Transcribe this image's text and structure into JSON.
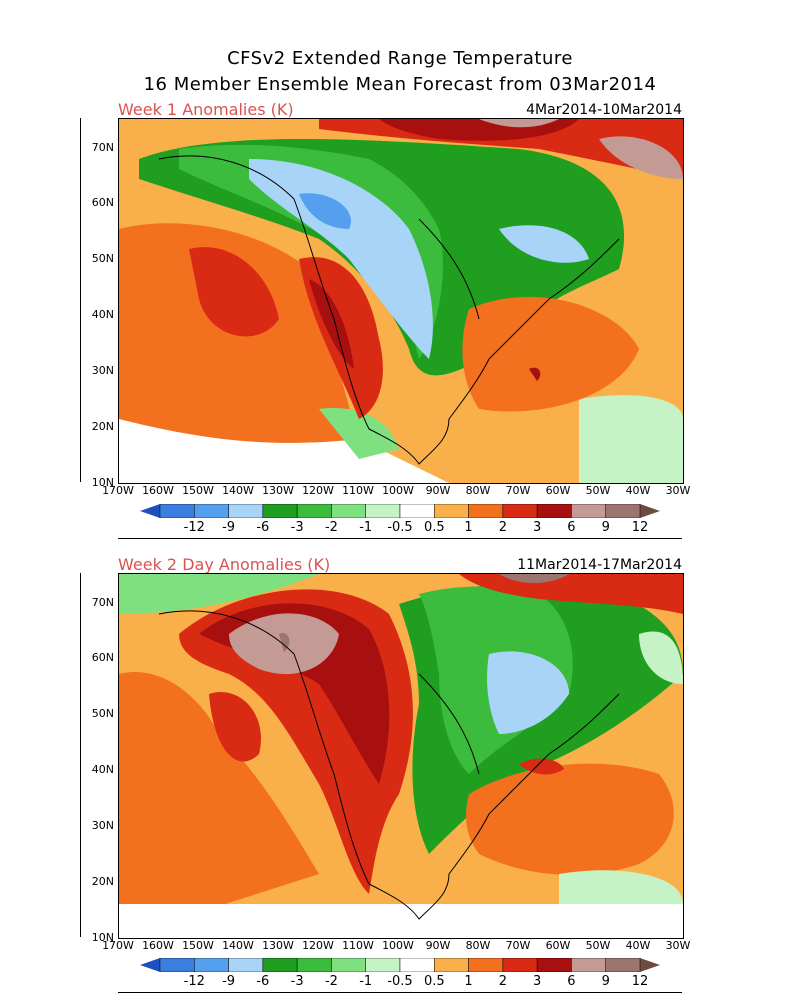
{
  "title_line1": "CFSv2 Extended Range Temperature",
  "title_line2": "16 Member Ensemble Mean Forecast from 03Mar2014",
  "panels": [
    {
      "label": "Week 1 Anomalies (K)",
      "dates": "4Mar2014-10Mar2014"
    },
    {
      "label": "Week 2 Day Anomalies (K)",
      "dates": "11Mar2014-17Mar2014"
    }
  ],
  "lat_labels": [
    "70N",
    "60N",
    "50N",
    "40N",
    "30N",
    "20N",
    "10N"
  ],
  "lon_labels": [
    "170W",
    "160W",
    "150W",
    "140W",
    "130W",
    "120W",
    "110W",
    "100W",
    "90W",
    "80W",
    "70W",
    "60W",
    "50W",
    "40W",
    "30W"
  ],
  "colorbar": {
    "labels": [
      "-12",
      "-9",
      "-6",
      "-3",
      "-2",
      "-1",
      "-0.5",
      "0.5",
      "1",
      "2",
      "3",
      "6",
      "9",
      "12"
    ],
    "colors": [
      "#3a7fe0",
      "#55a0ee",
      "#a8d4f8",
      "#1f9e1f",
      "#3cbc3c",
      "#7fe07f",
      "#c5f3c5",
      "#ffffff",
      "#f9b04a",
      "#f2701e",
      "#d92a14",
      "#a80f0f",
      "#c49a95",
      "#9c7470"
    ],
    "end_left": "#1c4fc0",
    "end_right": "#6e4a40"
  }
}
